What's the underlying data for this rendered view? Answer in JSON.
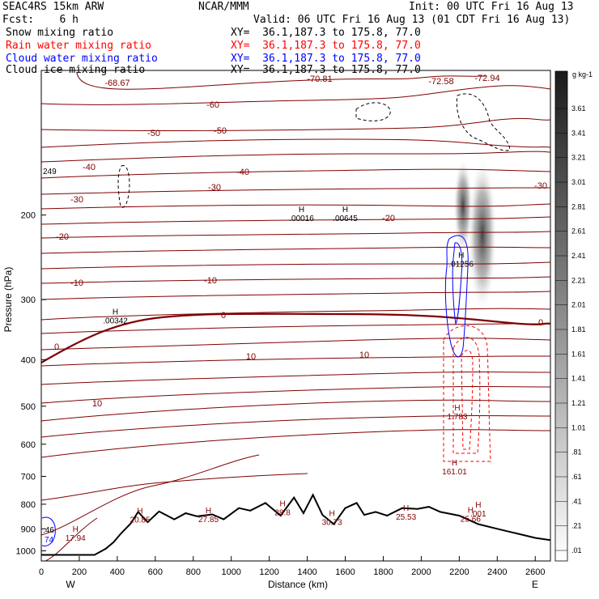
{
  "header": {
    "model": "SEAC4RS 15km ARW",
    "center": "NCAR/MMM",
    "init": "Init: 00 UTC Fri 16 Aug 13",
    "fcst": "Fcst:    6 h",
    "valid": "Valid: 06 UTC Fri 16 Aug 13 (01 CDT Fri 16 Aug 13)"
  },
  "fields": [
    {
      "label": "Snow mixing ratio",
      "xy": "XY=  36.1,187.3 to 175.8, 77.0",
      "color": "#000000"
    },
    {
      "label": "Rain water mixing ratio",
      "xy": "XY=  36.1,187.3 to 175.8, 77.0",
      "color": "#ff0000"
    },
    {
      "label": "Cloud water mixing ratio",
      "xy": "XY=  36.1,187.3 to 175.8, 77.0",
      "color": "#0000ff"
    },
    {
      "label": "Cloud ice mixing ratio",
      "xy": "XY=  36.1,187.3 to 175.8, 77.0",
      "color": "#000000"
    }
  ],
  "colorbar": {
    "unit": "g kg-1",
    "labels": [
      "3.61",
      "3.41",
      "3.21",
      "3.01",
      "2.81",
      "2.61",
      "2.41",
      "2.21",
      "2.01",
      "1.81",
      "1.61",
      "1.41",
      "1.21",
      "1.01",
      ".81",
      ".61",
      ".41",
      ".21",
      ".01"
    ]
  },
  "chart_data": {
    "type": "cross-section",
    "xlabel": "Distance (km)",
    "ylabel": "Pressure (hPa)",
    "x_ticks": [
      0,
      200,
      400,
      600,
      800,
      1000,
      1200,
      1400,
      1600,
      1800,
      2000,
      2200,
      2400,
      2600
    ],
    "y_ticks": [
      200,
      300,
      400,
      500,
      600,
      700,
      800,
      900,
      1000
    ],
    "x_end_labels": {
      "left": "W",
      "right": "E"
    },
    "xlim": [
      0,
      2680
    ],
    "ylim": [
      1050,
      100
    ],
    "y_scale": "log",
    "temperature_contours": [
      {
        "value": -70,
        "labels": [
          "-72.94",
          "-72.58",
          "-70.81"
        ]
      },
      {
        "value": -68,
        "labels": [
          "-68.67"
        ]
      },
      {
        "value": -60,
        "labels": [
          "-60"
        ]
      },
      {
        "value": -50,
        "labels": [
          "-50",
          "-50"
        ]
      },
      {
        "value": -40,
        "labels": [
          "-40",
          "-40"
        ]
      },
      {
        "value": -30,
        "labels": [
          "-30",
          "-30",
          "-30"
        ]
      },
      {
        "value": -20,
        "labels": [
          "-20",
          "-20"
        ]
      },
      {
        "value": -10,
        "labels": [
          "-10",
          "-10"
        ]
      },
      {
        "value": 0,
        "labels": [
          "0",
          "0",
          "0"
        ]
      },
      {
        "value": 10,
        "labels": [
          "10",
          "10",
          "10"
        ]
      }
    ],
    "extrema_labels": [
      {
        "text": "H",
        "value": ".00016",
        "x_km": 1370,
        "p": 205
      },
      {
        "text": "H",
        "value": ".00645",
        "x_km": 1600,
        "p": 205
      },
      {
        "text": "H",
        "value": ".01256",
        "x_km": 2210,
        "p": 255
      },
      {
        "text": "H",
        "value": ".00342",
        "x_km": 390,
        "p": 335
      },
      {
        "text": "H",
        "value": "1.783",
        "x_km": 2190,
        "p": 530
      },
      {
        "text": "H",
        "value": "161.01",
        "x_km": 2175,
        "p": 690
      },
      {
        "text": "H",
        "value": ".001",
        "x_km": 2300,
        "p": 845
      },
      {
        "text": "H",
        "value": "20.85",
        "x_km": 520,
        "p": 870
      },
      {
        "text": "H",
        "value": "27.85",
        "x_km": 880,
        "p": 868
      },
      {
        "text": "H",
        "value": "28.8",
        "x_km": 1270,
        "p": 840
      },
      {
        "text": "H",
        "value": "30.73",
        "x_km": 1530,
        "p": 880
      },
      {
        "text": "H",
        "value": "25.53",
        "x_km": 1920,
        "p": 858
      },
      {
        "text": "H",
        "value": "25.66",
        "x_km": 2260,
        "p": 866
      },
      {
        "text": "H",
        "value": "17.94",
        "x_km": 180,
        "p": 950
      }
    ],
    "edge_labels": [
      "249",
      ".46",
      "74"
    ],
    "terrain_pressure": [
      {
        "x": 0,
        "p": 1020
      },
      {
        "x": 150,
        "p": 1020
      },
      {
        "x": 280,
        "p": 1020
      },
      {
        "x": 340,
        "p": 990
      },
      {
        "x": 380,
        "p": 960
      },
      {
        "x": 420,
        "p": 920
      },
      {
        "x": 470,
        "p": 878
      },
      {
        "x": 510,
        "p": 830
      },
      {
        "x": 560,
        "p": 872
      },
      {
        "x": 620,
        "p": 828
      },
      {
        "x": 700,
        "p": 860
      },
      {
        "x": 760,
        "p": 835
      },
      {
        "x": 820,
        "p": 848
      },
      {
        "x": 900,
        "p": 840
      },
      {
        "x": 960,
        "p": 860
      },
      {
        "x": 1040,
        "p": 815
      },
      {
        "x": 1100,
        "p": 825
      },
      {
        "x": 1180,
        "p": 795
      },
      {
        "x": 1260,
        "p": 845
      },
      {
        "x": 1330,
        "p": 775
      },
      {
        "x": 1380,
        "p": 835
      },
      {
        "x": 1430,
        "p": 765
      },
      {
        "x": 1480,
        "p": 842
      },
      {
        "x": 1540,
        "p": 880
      },
      {
        "x": 1600,
        "p": 815
      },
      {
        "x": 1660,
        "p": 795
      },
      {
        "x": 1700,
        "p": 842
      },
      {
        "x": 1760,
        "p": 830
      },
      {
        "x": 1820,
        "p": 845
      },
      {
        "x": 1900,
        "p": 815
      },
      {
        "x": 1980,
        "p": 818
      },
      {
        "x": 2040,
        "p": 810
      },
      {
        "x": 2100,
        "p": 830
      },
      {
        "x": 2200,
        "p": 845
      },
      {
        "x": 2300,
        "p": 880
      },
      {
        "x": 2400,
        "p": 900
      },
      {
        "x": 2500,
        "p": 920
      },
      {
        "x": 2600,
        "p": 940
      },
      {
        "x": 2680,
        "p": 950
      }
    ],
    "grid": false
  }
}
